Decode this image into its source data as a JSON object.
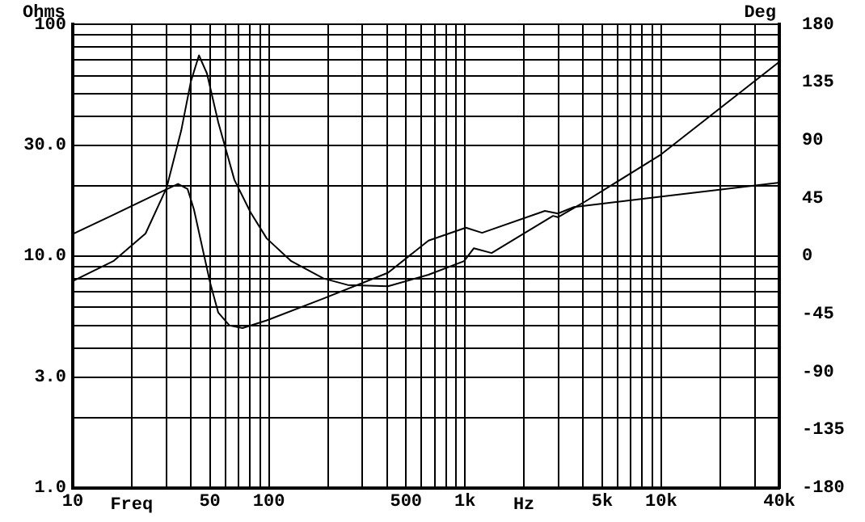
{
  "chart_data": {
    "type": "line",
    "xlabel": "Freq",
    "ylabel": "Ohms",
    "y2label": "Deg",
    "annotations": [
      "Hz"
    ],
    "log": "xy",
    "grid": true,
    "legend": false,
    "marker": "none",
    "line_style": "solid",
    "xlim": [
      10,
      40000
    ],
    "xticks": [
      10,
      {
        "value": 20,
        "label": null
      },
      {
        "value": 30,
        "label": null
      },
      {
        "value": 40,
        "label": null
      },
      50,
      {
        "value": 60,
        "label": null
      },
      {
        "value": 70,
        "label": null
      },
      {
        "value": 80,
        "label": null
      },
      {
        "value": 90,
        "label": null
      },
      100,
      {
        "value": 200,
        "label": null
      },
      {
        "value": 300,
        "label": null
      },
      {
        "value": 400,
        "label": null
      },
      500,
      {
        "value": 600,
        "label": null
      },
      {
        "value": 700,
        "label": null
      },
      {
        "value": 800,
        "label": null
      },
      {
        "value": 900,
        "label": null
      },
      {
        "value": 1000,
        "label": "1k"
      },
      {
        "value": 2000,
        "label": null
      },
      {
        "value": 3000,
        "label": null
      },
      {
        "value": 4000,
        "label": null
      },
      {
        "value": 5000,
        "label": "5k"
      },
      {
        "value": 6000,
        "label": null
      },
      {
        "value": 7000,
        "label": null
      },
      {
        "value": 8000,
        "label": null
      },
      {
        "value": 9000,
        "label": null
      },
      {
        "value": 10000,
        "label": "10k"
      },
      {
        "value": 20000,
        "label": null
      },
      {
        "value": 30000,
        "label": null
      },
      {
        "value": 40000,
        "label": "40k"
      }
    ],
    "ylim": [
      1,
      100
    ],
    "yticks": [
      {
        "value": 1,
        "label": "1.0"
      },
      {
        "value": 2,
        "label": null
      },
      {
        "value": 3,
        "label": "3.0"
      },
      {
        "value": 4,
        "label": null
      },
      {
        "value": 5,
        "label": null
      },
      {
        "value": 6,
        "label": null
      },
      {
        "value": 7,
        "label": null
      },
      {
        "value": 8,
        "label": null
      },
      {
        "value": 9,
        "label": null
      },
      {
        "value": 10,
        "label": "10.0"
      },
      {
        "value": 20,
        "label": null
      },
      {
        "value": 30,
        "label": "30.0"
      },
      {
        "value": 40,
        "label": null
      },
      {
        "value": 50,
        "label": null
      },
      {
        "value": 60,
        "label": null
      },
      {
        "value": 70,
        "label": null
      },
      {
        "value": 80,
        "label": null
      },
      {
        "value": 90,
        "label": null
      },
      100
    ],
    "y2lim": [
      -180,
      180
    ],
    "y2ticks": [
      -180,
      -135,
      -90,
      -45,
      0,
      45,
      90,
      135,
      180
    ],
    "series": [
      {
        "color": "#000000",
        "x": [
          10,
          16.1,
          23.5,
          30.1,
          35.7,
          40,
          44,
          48.3,
          55.2,
          66.7,
          80.7,
          97.5,
          130,
          190,
          252,
          405,
          651,
          989,
          1109,
          1366,
          2808,
          2973,
          4104,
          9840,
          40000
        ],
        "values": [
          7.8,
          9.5,
          12.5,
          19.7,
          34.7,
          56.6,
          73.4,
          61.4,
          37.7,
          21.3,
          15.4,
          11.9,
          9.5,
          8.0,
          7.5,
          7.4,
          8.3,
          9.5,
          10.8,
          10.3,
          14.9,
          14.7,
          17.2,
          27.2,
          68.8
        ]
      },
      {
        "color": "#000000",
        "axis": "y2",
        "x": [
          10,
          16.1,
          28.4,
          34.4,
          38.5,
          41.5,
          45.7,
          50.2,
          55.2,
          63,
          73.4,
          97.5,
          190,
          405,
          651,
          1010,
          1221,
          2553,
          2973,
          3590,
          9840,
          40000
        ],
        "values": [
          17,
          32,
          50,
          56,
          52,
          36,
          7,
          -21,
          -44,
          -54,
          -56,
          -50,
          -33,
          -13,
          12,
          22,
          18,
          35,
          33,
          38,
          46,
          57
        ]
      }
    ]
  }
}
